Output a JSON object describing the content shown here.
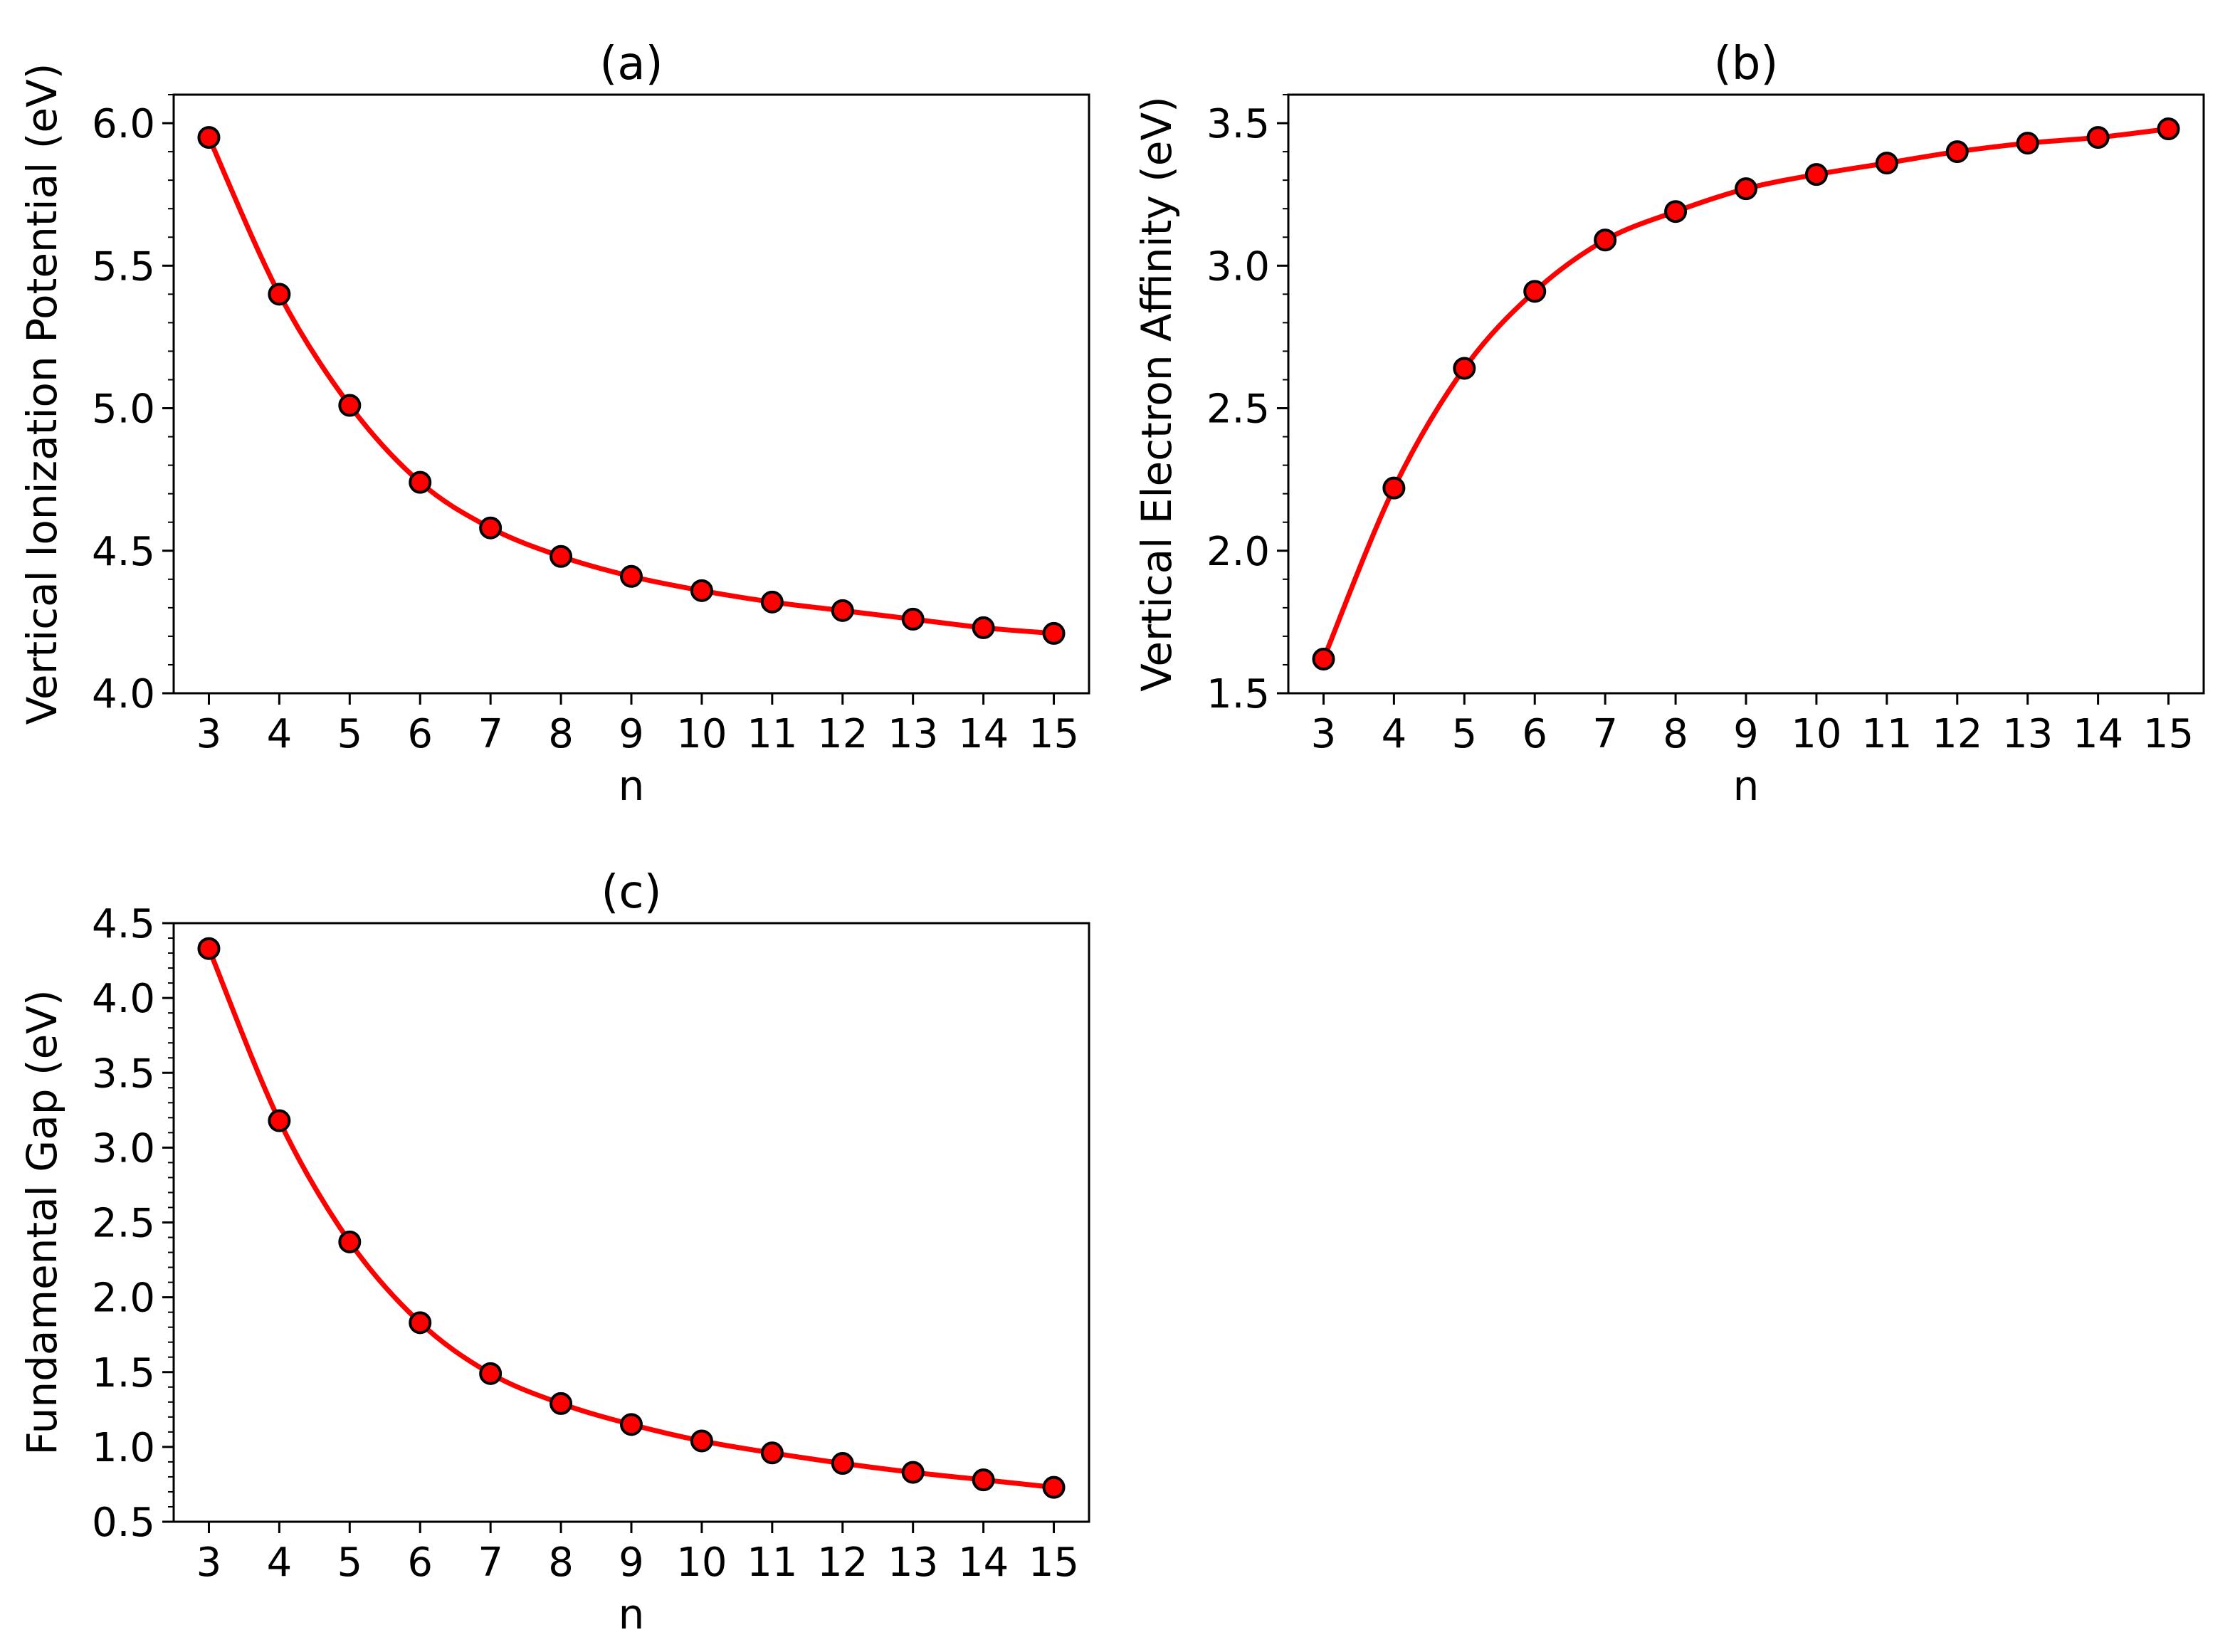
{
  "style": {
    "line_color": "#ff0000",
    "marker_fill": "#ff0000",
    "marker_edge": "#000000"
  },
  "chart_data": [
    {
      "type": "line",
      "title": "(a)",
      "xlabel": "n",
      "ylabel": "Vertical Ionization Potential (eV)",
      "x": [
        3,
        4,
        5,
        6,
        7,
        8,
        9,
        10,
        11,
        12,
        13,
        14,
        15
      ],
      "y": [
        5.95,
        5.4,
        5.01,
        4.74,
        4.58,
        4.48,
        4.41,
        4.36,
        4.32,
        4.29,
        4.26,
        4.23,
        4.21
      ],
      "ylim": [
        4.0,
        6.1
      ],
      "xlim": [
        2.5,
        15.5
      ],
      "yticks": [
        "4.0",
        "4.5",
        "5.0",
        "5.5",
        "6.0"
      ],
      "xticks": [
        "3",
        "4",
        "5",
        "6",
        "7",
        "8",
        "9",
        "10",
        "11",
        "12",
        "13",
        "14",
        "15"
      ]
    },
    {
      "type": "line",
      "title": "(b)",
      "xlabel": "n",
      "ylabel": "Vertical Electron Affinity (eV)",
      "x": [
        3,
        4,
        5,
        6,
        7,
        8,
        9,
        10,
        11,
        12,
        13,
        14,
        15
      ],
      "y": [
        1.62,
        2.22,
        2.64,
        2.91,
        3.09,
        3.19,
        3.27,
        3.32,
        3.36,
        3.4,
        3.43,
        3.45,
        3.48
      ],
      "ylim": [
        1.5,
        3.6
      ],
      "xlim": [
        2.5,
        15.5
      ],
      "yticks": [
        "1.5",
        "2.0",
        "2.5",
        "3.0",
        "3.5"
      ],
      "xticks": [
        "3",
        "4",
        "5",
        "6",
        "7",
        "8",
        "9",
        "10",
        "11",
        "12",
        "13",
        "14",
        "15"
      ]
    },
    {
      "type": "line",
      "title": "(c)",
      "xlabel": "n",
      "ylabel": "Fundamental Gap (eV)",
      "x": [
        3,
        4,
        5,
        6,
        7,
        8,
        9,
        10,
        11,
        12,
        13,
        14,
        15
      ],
      "y": [
        4.33,
        3.18,
        2.37,
        1.83,
        1.49,
        1.29,
        1.15,
        1.04,
        0.96,
        0.89,
        0.83,
        0.78,
        0.73
      ],
      "ylim": [
        0.5,
        4.5
      ],
      "xlim": [
        2.5,
        15.5
      ],
      "yticks": [
        "0.5",
        "1.0",
        "1.5",
        "2.0",
        "2.5",
        "3.0",
        "3.5",
        "4.0",
        "4.5"
      ],
      "xticks": [
        "3",
        "4",
        "5",
        "6",
        "7",
        "8",
        "9",
        "10",
        "11",
        "12",
        "13",
        "14",
        "15"
      ]
    }
  ]
}
